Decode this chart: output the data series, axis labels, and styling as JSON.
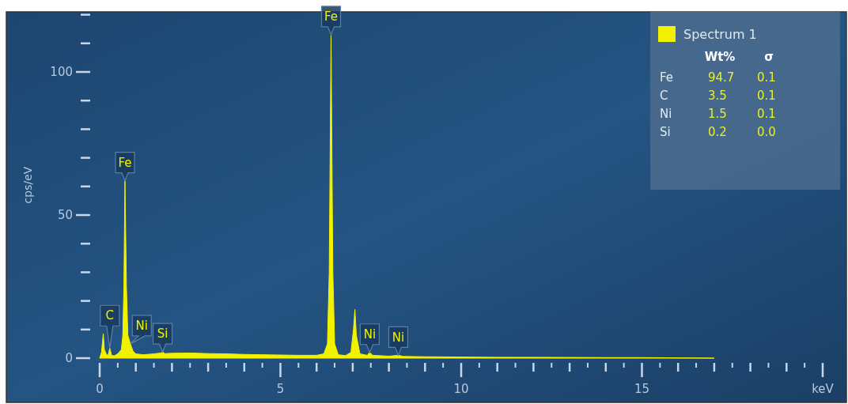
{
  "chart_data": {
    "type": "area",
    "ylabel": "cps/eV",
    "xlim": [
      0,
      20
    ],
    "ylim": [
      0,
      121
    ],
    "xticks": [
      0,
      {
        "value": 0.5,
        "label": null
      },
      {
        "value": 1,
        "label": null
      },
      {
        "value": 1.5,
        "label": null
      },
      {
        "value": 2,
        "label": null
      },
      {
        "value": 2.5,
        "label": null
      },
      {
        "value": 3,
        "label": null
      },
      {
        "value": 3.5,
        "label": null
      },
      {
        "value": 4,
        "label": null
      },
      {
        "value": 4.5,
        "label": null
      },
      5,
      {
        "value": 5.5,
        "label": null
      },
      {
        "value": 6,
        "label": null
      },
      {
        "value": 6.5,
        "label": null
      },
      {
        "value": 7,
        "label": null
      },
      {
        "value": 7.5,
        "label": null
      },
      {
        "value": 8,
        "label": null
      },
      {
        "value": 8.5,
        "label": null
      },
      {
        "value": 9,
        "label": null
      },
      {
        "value": 9.5,
        "label": null
      },
      10,
      {
        "value": 10.5,
        "label": null
      },
      {
        "value": 11,
        "label": null
      },
      {
        "value": 11.5,
        "label": null
      },
      {
        "value": 12,
        "label": null
      },
      {
        "value": 12.5,
        "label": null
      },
      {
        "value": 13,
        "label": null
      },
      {
        "value": 13.5,
        "label": null
      },
      {
        "value": 14,
        "label": null
      },
      {
        "value": 14.5,
        "label": null
      },
      15,
      {
        "value": 15.5,
        "label": null
      },
      {
        "value": 16,
        "label": null
      },
      {
        "value": 16.5,
        "label": null
      },
      {
        "value": 17,
        "label": null
      },
      {
        "value": 17.5,
        "label": null
      },
      {
        "value": 18,
        "label": null
      },
      {
        "value": 18.5,
        "label": null
      },
      {
        "value": 19,
        "label": null
      },
      {
        "value": 19.5,
        "label": null
      },
      {
        "value": 20,
        "label": "keV"
      }
    ],
    "yticks": [
      0,
      {
        "value": 10,
        "label": null
      },
      {
        "value": 20,
        "label": null
      },
      {
        "value": 30,
        "label": null
      },
      {
        "value": 40,
        "label": null
      },
      50,
      {
        "value": 60,
        "label": null
      },
      {
        "value": 70,
        "label": null
      },
      {
        "value": 80,
        "label": null
      },
      {
        "value": 90,
        "label": null
      },
      100,
      {
        "value": 110,
        "label": null
      },
      {
        "value": 120,
        "label": null
      }
    ],
    "grid": false,
    "legend": "top right",
    "series": [
      {
        "name": "Spectrum 1",
        "color": "#f2f200",
        "x": [
          0,
          0.05,
          0.1,
          0.13,
          0.18,
          0.23,
          0.28,
          0.33,
          0.4,
          0.5,
          0.6,
          0.64,
          0.67,
          0.7,
          0.74,
          0.78,
          0.85,
          0.92,
          1.0,
          1.2,
          1.5,
          1.7,
          1.74,
          1.8,
          2.0,
          2.5,
          3.0,
          3.5,
          4.0,
          4.5,
          5.0,
          5.5,
          6.0,
          6.2,
          6.3,
          6.35,
          6.4,
          6.45,
          6.5,
          6.6,
          6.8,
          6.95,
          7.02,
          7.06,
          7.1,
          7.2,
          7.4,
          7.47,
          7.55,
          8.0,
          8.26,
          8.4,
          9,
          10,
          11,
          12,
          13,
          14,
          15,
          16,
          17
        ],
        "values": [
          0,
          2,
          8.5,
          3,
          1.5,
          0.8,
          3.5,
          1,
          0.8,
          1.5,
          3,
          8,
          25,
          62,
          25,
          8,
          5,
          2.5,
          1.5,
          1.2,
          1.5,
          1.8,
          2.2,
          1.6,
          1.7,
          1.8,
          1.6,
          1.5,
          1.3,
          1.2,
          1.1,
          1.0,
          1.0,
          1.5,
          5,
          30,
          113,
          30,
          5,
          1.2,
          0.9,
          2,
          10,
          17,
          8,
          1.5,
          1,
          2,
          1,
          0.7,
          1,
          0.6,
          0.5,
          0.4,
          0.3,
          0.3,
          0.25,
          0.2,
          0.2,
          0.1,
          0
        ]
      }
    ],
    "annotations": [
      {
        "text": "Fe",
        "x": 6.4,
        "y": 113
      },
      {
        "text": "Fe",
        "x": 0.7,
        "y": 62
      },
      {
        "text": "C",
        "x": 0.28,
        "y": 3.5
      },
      {
        "text": "Ni",
        "x": 0.85,
        "y": 5
      },
      {
        "text": "Si",
        "x": 1.74,
        "y": 2.2
      },
      {
        "text": "Ni",
        "x": 7.47,
        "y": 2
      },
      {
        "text": "Ni",
        "x": 8.26,
        "y": 1
      },
      "Wt%",
      "σ",
      "Fe",
      "94.7",
      "0.1",
      "C",
      "3.5",
      "0.1",
      "Ni",
      "1.5",
      "0.1",
      "Si",
      "0.2",
      "0.0"
    ]
  }
}
